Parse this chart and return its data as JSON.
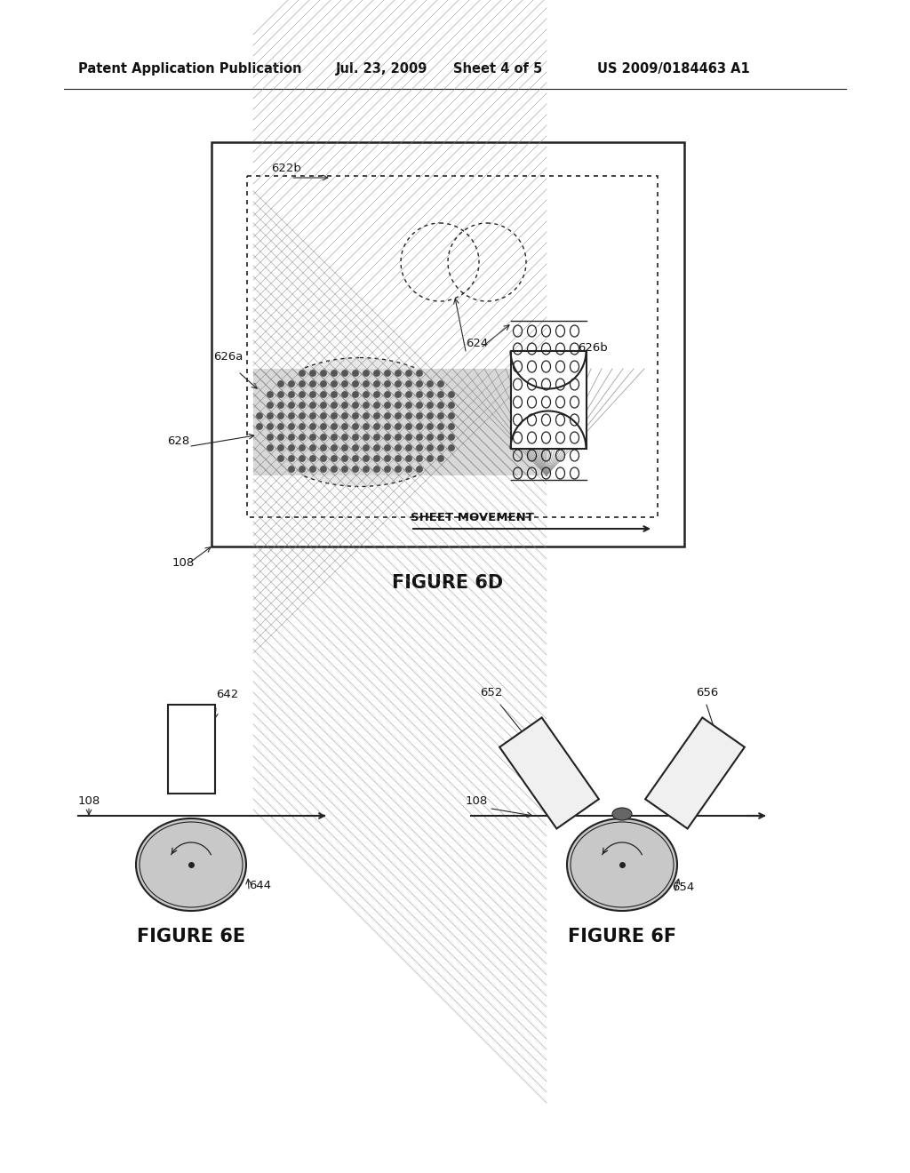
{
  "bg_color": "#ffffff",
  "header_text": "Patent Application Publication",
  "header_date": "Jul. 23, 2009",
  "header_sheet": "Sheet 4 of 5",
  "header_patent": "US 2009/0184463 A1",
  "fig6d_title": "FIGURE 6D",
  "fig6e_title": "FIGURE 6E",
  "fig6f_title": "FIGURE 6F",
  "sheet_movement_text": "SHEET MOVEMENT",
  "line_color": "#222222",
  "text_color": "#111111",
  "gray_light": "#cccccc",
  "gray_med": "#999999",
  "gray_dark": "#666666"
}
